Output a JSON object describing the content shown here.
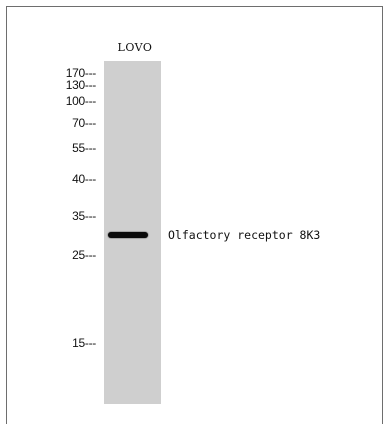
{
  "blot": {
    "lane_label": "LOVO",
    "band_label": "Olfactory receptor 8K3",
    "lane_color": "#cfcfcf",
    "band_color": "#0a0a0a"
  },
  "markers": [
    {
      "label": "170---"
    },
    {
      "label": "130---"
    },
    {
      "label": "100---"
    },
    {
      "label": "70---"
    },
    {
      "label": "55---"
    },
    {
      "label": "40---"
    },
    {
      "label": "35---"
    },
    {
      "label": "25---"
    },
    {
      "label": "15---"
    }
  ]
}
